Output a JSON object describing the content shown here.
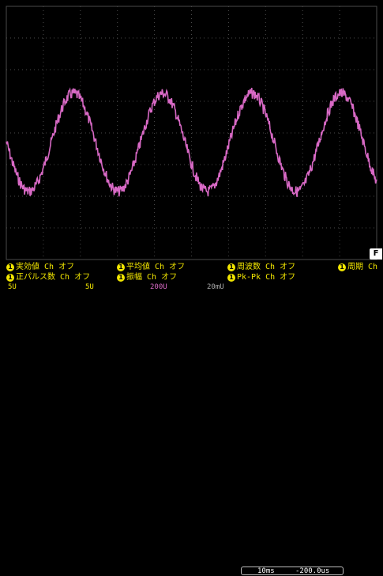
{
  "waveform": {
    "color": "#d869c5",
    "periods_visible": 4,
    "noise": "high-frequency"
  },
  "measurements": {
    "row1": [
      {
        "badge": "1",
        "label": "実効値 Ch オフ"
      },
      {
        "badge": "1",
        "label": "平均値 Ch オフ"
      },
      {
        "badge": "1",
        "label": "周波数 Ch オフ"
      },
      {
        "badge": "1",
        "label": "周期 Ch"
      }
    ],
    "row2": [
      {
        "badge": "1",
        "label": "正パルス数 Ch オフ"
      },
      {
        "badge": "1",
        "label": "振幅 Ch オフ"
      },
      {
        "badge": "1",
        "label": "Pk-Pk Ch オフ"
      }
    ]
  },
  "f_key": "F",
  "bottom_bar": {
    "ch1": "5U",
    "ch1b": "5U",
    "ch2": "200U",
    "ch3": "20mU",
    "timebase": "10ms",
    "delay": "-200.0us"
  },
  "colors": {
    "grid": "#4a4a4a",
    "measure": "#f2e600",
    "accent": "#d869c5"
  }
}
